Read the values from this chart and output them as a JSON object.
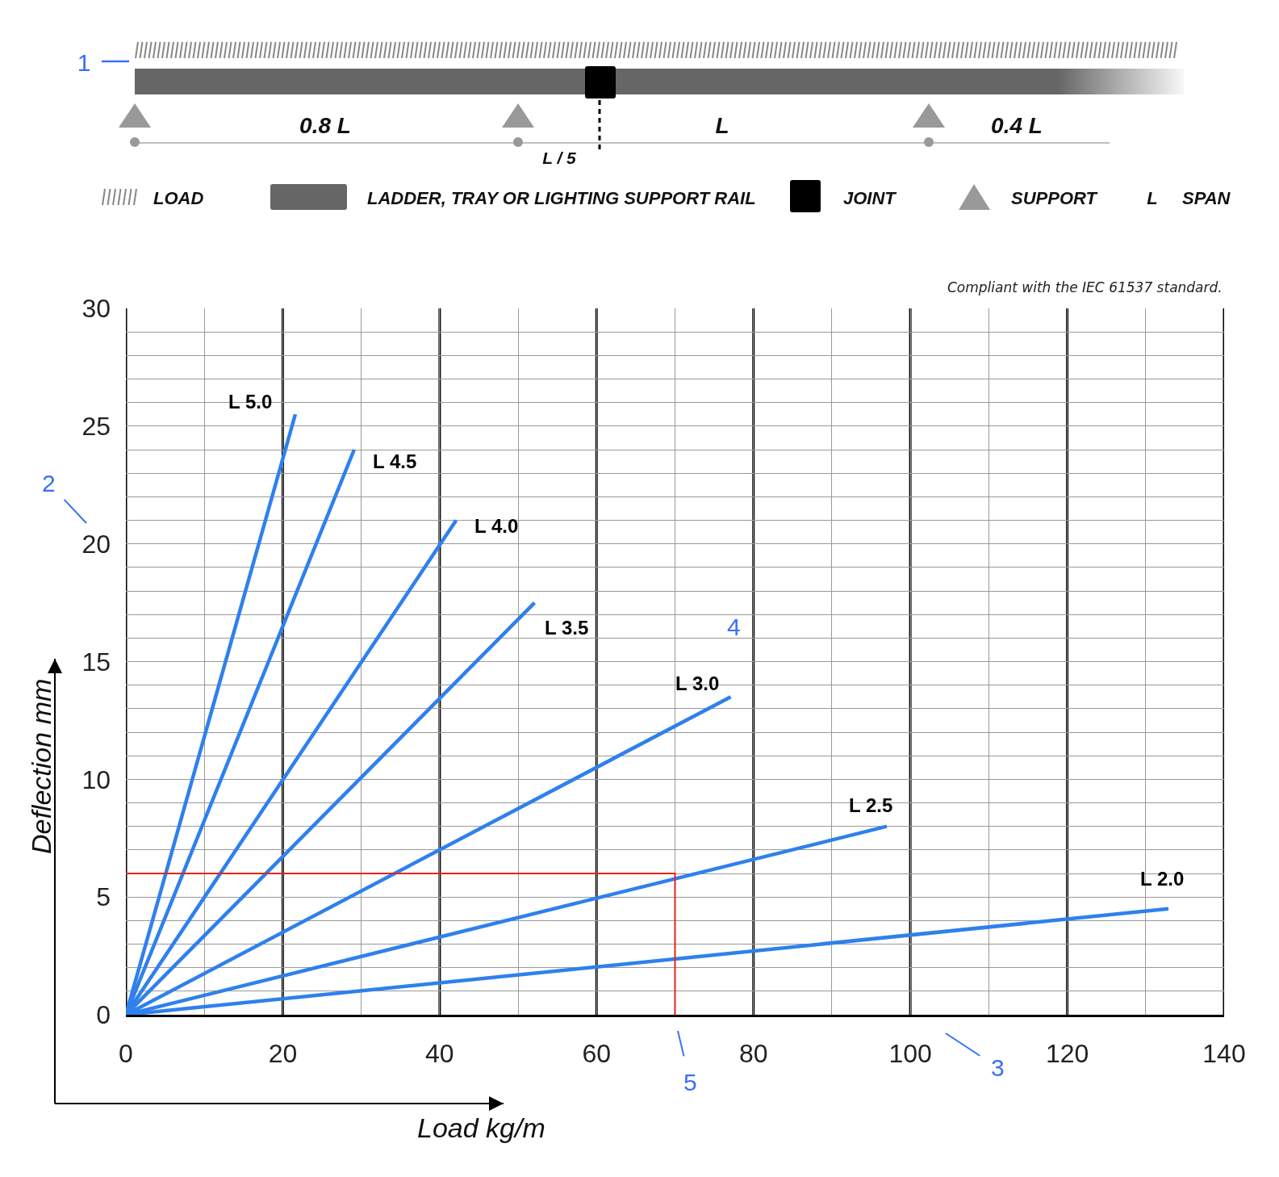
{
  "chart_data": {
    "type": "line",
    "xlabel": "Load kg/m",
    "ylabel": "Deflection mm",
    "xlim": [
      0,
      140
    ],
    "ylim": [
      0,
      30
    ],
    "xticks": [
      0,
      {
        "value": 10,
        "label": null
      },
      20,
      {
        "value": 30,
        "label": null
      },
      40,
      {
        "value": 50,
        "label": null
      },
      60,
      {
        "value": 70,
        "label": null
      },
      80,
      {
        "value": 90,
        "label": null
      },
      100,
      {
        "value": 110,
        "label": null
      },
      120,
      {
        "value": 130,
        "label": null
      },
      140
    ],
    "yticks": [
      0,
      {
        "value": 1,
        "label": null
      },
      {
        "value": 2,
        "label": null
      },
      {
        "value": 3,
        "label": null
      },
      {
        "value": 4,
        "label": null
      },
      5,
      {
        "value": 6,
        "label": null
      },
      {
        "value": 7,
        "label": null
      },
      {
        "value": 8,
        "label": null
      },
      {
        "value": 9,
        "label": null
      },
      10,
      {
        "value": 11,
        "label": null
      },
      {
        "value": 12,
        "label": null
      },
      {
        "value": 13,
        "label": null
      },
      {
        "value": 14,
        "label": null
      },
      15,
      {
        "value": 16,
        "label": null
      },
      {
        "value": 17,
        "label": null
      },
      {
        "value": 18,
        "label": null
      },
      {
        "value": 19,
        "label": null
      },
      20,
      {
        "value": 21,
        "label": null
      },
      {
        "value": 22,
        "label": null
      },
      {
        "value": 23,
        "label": null
      },
      {
        "value": 24,
        "label": null
      },
      25,
      {
        "value": 26,
        "label": null
      },
      {
        "value": 27,
        "label": null
      },
      {
        "value": 28,
        "label": null
      },
      {
        "value": 29,
        "label": null
      },
      30
    ],
    "grid": true,
    "series": [
      {
        "name": "L 5.0",
        "color": "#2f80ed",
        "x": [
          0,
          21.6
        ],
        "values": [
          0,
          25.5
        ]
      },
      {
        "name": "L 4.5",
        "color": "#2f80ed",
        "x": [
          0,
          29.1
        ],
        "values": [
          0,
          24
        ]
      },
      {
        "name": "L 4.0",
        "color": "#2f80ed",
        "x": [
          0,
          42.1
        ],
        "values": [
          0,
          21
        ]
      },
      {
        "name": "L 3.5",
        "color": "#2f80ed",
        "x": [
          0,
          52.1
        ],
        "values": [
          0,
          17.5
        ]
      },
      {
        "name": "L 3.0",
        "color": "#2f80ed",
        "x": [
          0,
          77.1
        ],
        "values": [
          0,
          13.5
        ]
      },
      {
        "name": "L 2.5",
        "color": "#2f80ed",
        "x": [
          0,
          97
        ],
        "values": [
          0,
          8
        ]
      },
      {
        "name": "L 2.0",
        "color": "#2f80ed",
        "x": [
          0,
          132.9
        ],
        "values": [
          0,
          4.5
        ]
      },
      {
        "color": "#e3241b",
        "x": [
          0,
          70,
          70
        ],
        "values": [
          6,
          6,
          0
        ]
      }
    ],
    "annotations": [
      "Compliant with the IEC 61537 standard.",
      "1",
      "2",
      "3",
      "4",
      "5",
      "0.8 L",
      "L",
      "0.4 L",
      "L / 5",
      "LOAD",
      "LADDER, TRAY OR LIGHTING SUPPORT RAIL",
      "JOINT",
      "SUPPORT",
      "L",
      "SPAN"
    ]
  }
}
